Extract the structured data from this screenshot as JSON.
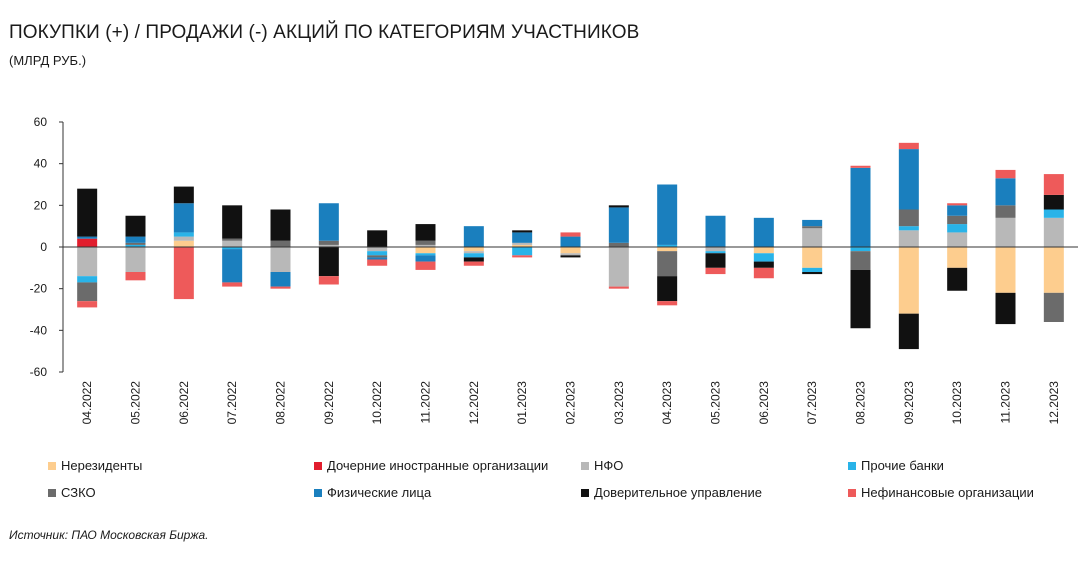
{
  "title": "ПОКУПКИ (+) / ПРОДАЖИ (-) АКЦИЙ ПО КАТЕГОРИЯМ УЧАСТНИКОВ",
  "subtitle": "(МЛРД РУБ.)",
  "source": "Источник: ПАО Московская Биржа.",
  "chart_data": {
    "type": "bar",
    "stacked": true,
    "ylim": [
      -60,
      60
    ],
    "yticks": [
      60,
      40,
      20,
      0,
      -20,
      -40,
      -60
    ],
    "categories": [
      "04.2022",
      "05.2022",
      "06.2022",
      "07.2022",
      "08.2022",
      "09.2022",
      "10.2022",
      "11.2022",
      "12.2022",
      "01.2023",
      "02.2023",
      "03.2023",
      "04.2023",
      "05.2023",
      "06.2023",
      "07.2023",
      "08.2023",
      "09.2023",
      "10.2023",
      "11.2023",
      "12.2023"
    ],
    "series": [
      {
        "name": "Нерезиденты",
        "color": "#fdcd8e",
        "values": [
          0,
          0,
          3,
          0,
          0,
          0,
          0,
          -3,
          -2,
          1,
          -3,
          0,
          -2,
          0,
          -3,
          -10,
          0,
          -32,
          -10,
          -22,
          -22
        ]
      },
      {
        "name": "Дочерние иностранные организации",
        "color": "#e11d2d",
        "values": [
          4,
          0,
          0,
          0,
          0,
          0,
          0,
          0,
          0,
          0,
          0,
          0,
          0,
          0,
          0,
          0,
          0,
          0,
          0,
          0,
          0
        ]
      },
      {
        "name": "НФО",
        "color": "#b8b8b8",
        "values": [
          -14,
          -12,
          2,
          3,
          -12,
          1,
          -2,
          1,
          -1,
          1,
          -1,
          -19,
          0,
          -2,
          0,
          9,
          0,
          8,
          7,
          14,
          14
        ]
      },
      {
        "name": "Прочие банки",
        "color": "#29b3e8",
        "values": [
          -3,
          1,
          2,
          -1,
          0,
          0,
          -2,
          -1,
          -2,
          -4,
          0,
          0,
          1,
          -1,
          -4,
          -2,
          -2,
          2,
          4,
          0,
          4
        ]
      },
      {
        "name": "СЗКО",
        "color": "#6b6b6b",
        "values": [
          -9,
          1,
          0,
          1,
          3,
          2,
          -1,
          2,
          0,
          0,
          0,
          2,
          -12,
          0,
          0,
          1,
          -9,
          8,
          4,
          6,
          -14
        ]
      },
      {
        "name": "Физические лица",
        "color": "#1a7fbe",
        "values": [
          1,
          3,
          14,
          -16,
          -7,
          18,
          -1,
          -3,
          10,
          5,
          5,
          17,
          29,
          15,
          14,
          3,
          38,
          29,
          5,
          13,
          0
        ]
      },
      {
        "name": "Доверительное управление",
        "color": "#111111",
        "values": [
          23,
          10,
          8,
          16,
          15,
          -14,
          8,
          8,
          -2,
          1,
          -1,
          1,
          -12,
          -7,
          -3,
          -1,
          -28,
          -17,
          -11,
          -15,
          7
        ]
      },
      {
        "name": "Нефинансовые организации",
        "color": "#ee5a5a",
        "values": [
          -3,
          -4,
          -25,
          -2,
          -1,
          -4,
          -3,
          -4,
          -2,
          -1,
          2,
          -1,
          -2,
          -3,
          -5,
          0,
          1,
          3,
          1,
          4,
          10
        ]
      }
    ]
  }
}
